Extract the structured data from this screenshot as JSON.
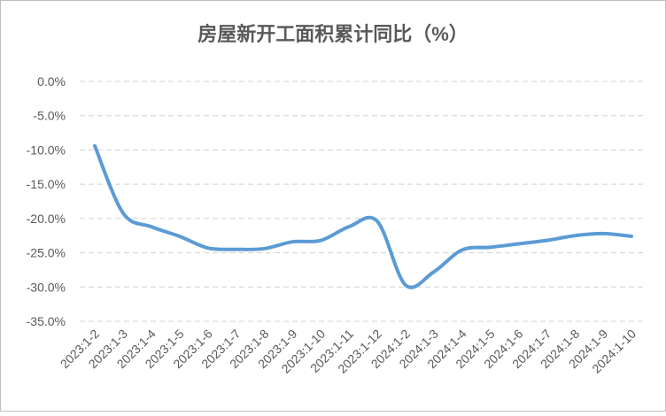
{
  "chart_data": {
    "type": "line",
    "title": "房屋新开工面积累计同比（%）",
    "categories": [
      "2023:1-2",
      "2023:1-3",
      "2023:1-4",
      "2023:1-5",
      "2023:1-6",
      "2023:1-7",
      "2023:1-8",
      "2023:1-9",
      "2023:1-10",
      "2023:1-11",
      "2023:1-12",
      "2024:1-2",
      "2024:1-3",
      "2024:1-4",
      "2024:1-5",
      "2024:1-6",
      "2024:1-7",
      "2024:1-8",
      "2024:1-9",
      "2024:1-10"
    ],
    "values": [
      -9.4,
      -19.2,
      -21.2,
      -22.6,
      -24.3,
      -24.5,
      -24.4,
      -23.4,
      -23.2,
      -21.2,
      -20.4,
      -29.7,
      -27.8,
      -24.6,
      -24.2,
      -23.7,
      -23.2,
      -22.5,
      -22.2,
      -22.6
    ],
    "color": "#5b9bd5",
    "ylim": [
      -35,
      0
    ],
    "yticks": [
      {
        "value": 0,
        "label": "0.0%"
      },
      {
        "value": -5,
        "label": "-5.0%"
      },
      {
        "value": -10,
        "label": "-10.0%"
      },
      {
        "value": -15,
        "label": "-15.0%"
      },
      {
        "value": -20,
        "label": "-20.0%"
      },
      {
        "value": -25,
        "label": "-25.0%"
      },
      {
        "value": -30,
        "label": "-30.0%"
      },
      {
        "value": -35,
        "label": "-35.0%"
      }
    ],
    "grid": true
  }
}
